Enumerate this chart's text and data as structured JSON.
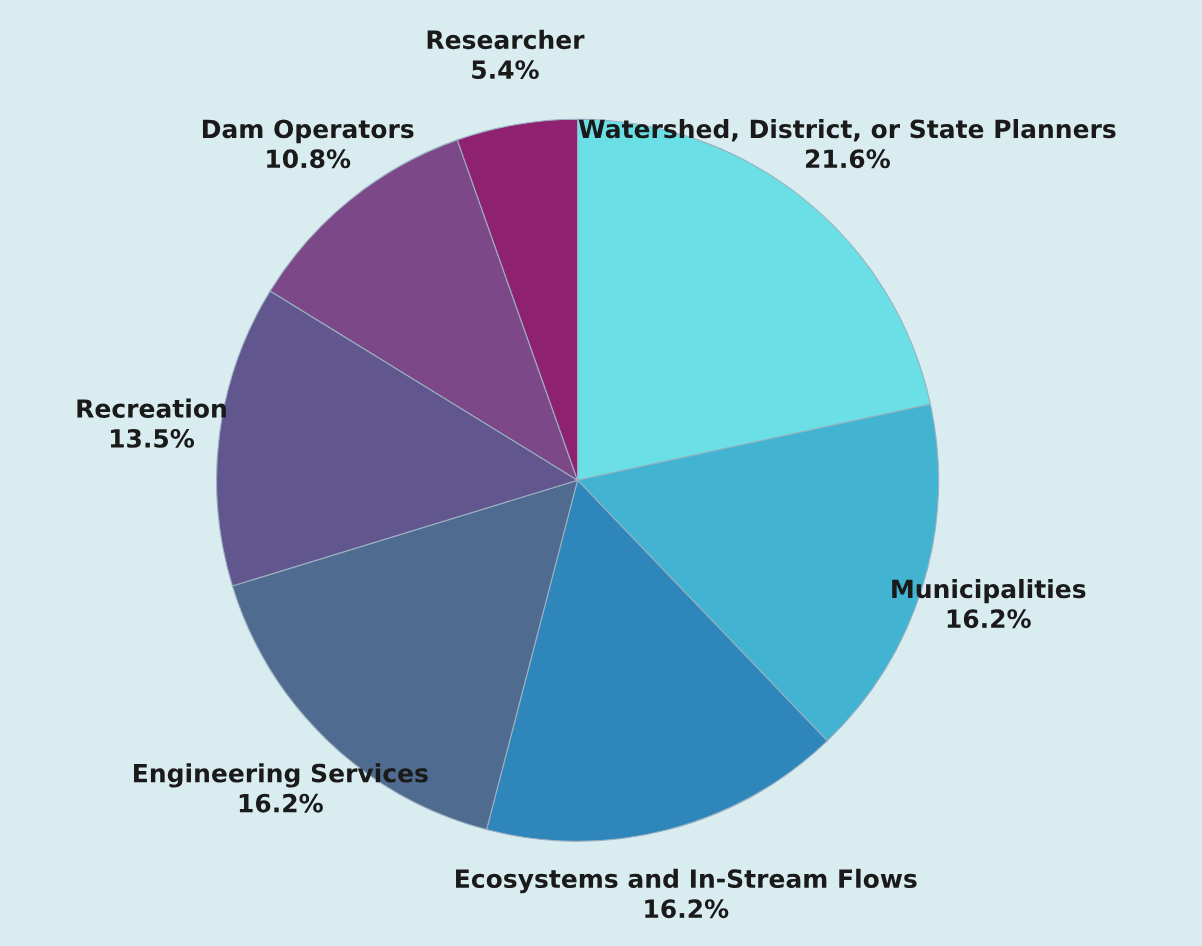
{
  "chart_data": {
    "type": "pie",
    "categories": [
      "Watershed, District, or State Planners",
      "Municipalities",
      "Ecosystems and In-Stream Flows",
      "Engineering Services",
      "Recreation",
      "Dam Operators",
      "Researcher"
    ],
    "values": [
      21.6,
      16.2,
      16.2,
      16.2,
      13.5,
      10.8,
      5.4
    ],
    "value_labels": [
      "21.6%",
      "16.2%",
      "16.2%",
      "16.2%",
      "13.5%",
      "10.8%",
      "5.4%"
    ],
    "colors": [
      "#6ae0e6",
      "#42b3d1",
      "#2f86bb",
      "#4f6b8f",
      "#62568f",
      "#7c4888",
      "#8e2170"
    ]
  }
}
